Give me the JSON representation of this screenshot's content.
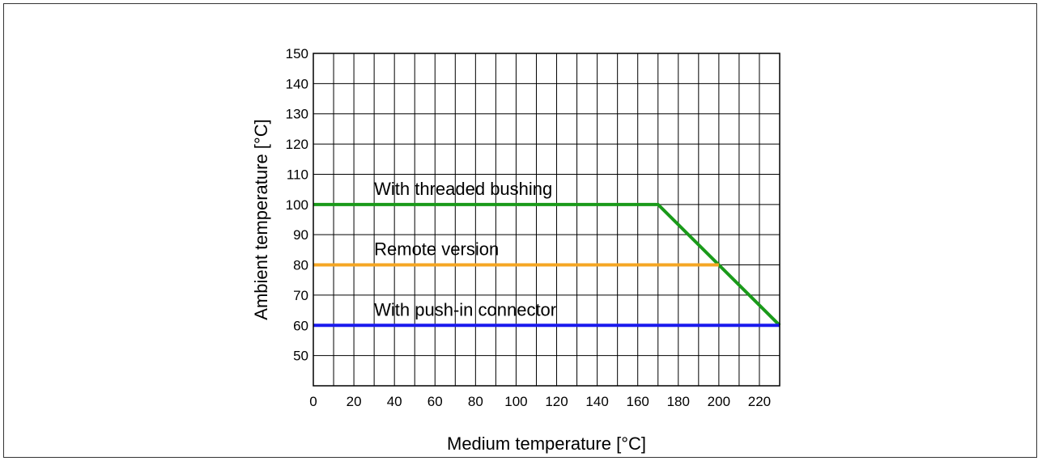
{
  "chart_data": {
    "type": "line",
    "title": "",
    "xlabel": "Medium temperature [°C]",
    "ylabel": "Ambient temperature [°C]",
    "xlim": [
      0,
      230
    ],
    "ylim": [
      40,
      150
    ],
    "xticks": [
      0,
      20,
      40,
      60,
      80,
      100,
      120,
      140,
      160,
      180,
      200,
      220
    ],
    "yticks": [
      50,
      60,
      70,
      80,
      90,
      100,
      110,
      120,
      130,
      140,
      150
    ],
    "grid": true,
    "grid_x_step": 10,
    "grid_y_step": 10,
    "legend": "none",
    "series": [
      {
        "name": "With threaded bushing",
        "color": "#1a9a1a",
        "points": [
          [
            0,
            100
          ],
          [
            170,
            100
          ],
          [
            230,
            60
          ]
        ],
        "label_at": [
          30,
          104
        ]
      },
      {
        "name": "Remote version",
        "color": "#f5a623",
        "points": [
          [
            0,
            80
          ],
          [
            200,
            80
          ]
        ],
        "label_at": [
          30,
          84
        ]
      },
      {
        "name": "With push-in connector",
        "color": "#1a1aee",
        "points": [
          [
            0,
            60
          ],
          [
            230,
            60
          ]
        ],
        "label_at": [
          30,
          64
        ]
      }
    ]
  }
}
